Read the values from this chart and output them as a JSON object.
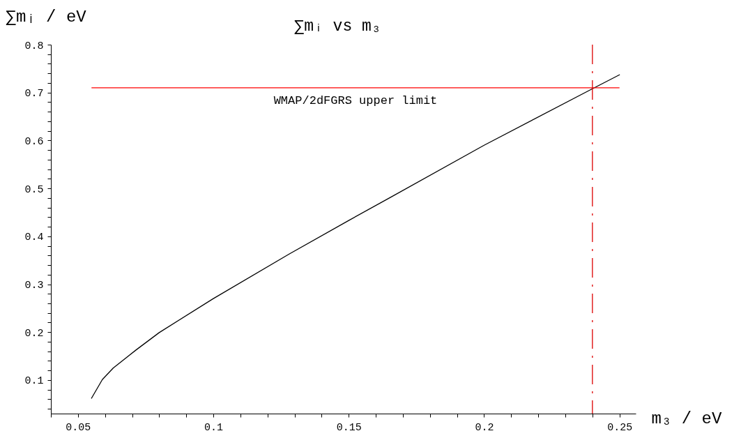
{
  "chart_data": {
    "type": "line",
    "title": "∑mᵢ vs m₃",
    "xlabel": "m₃ / eV",
    "ylabel": "∑mᵢ / eV",
    "series": [
      {
        "color": "#000000",
        "x": [
          0.055,
          0.059,
          0.063,
          0.0715,
          0.08,
          0.1,
          0.128,
          0.15,
          0.165,
          0.2,
          0.24,
          0.25
        ],
        "values": [
          0.062,
          0.101,
          0.125,
          0.163,
          0.199,
          0.27,
          0.363,
          0.433,
          0.48,
          0.59,
          0.708,
          0.737
        ]
      }
    ],
    "xlim": [
      0.04,
      0.256
    ],
    "ylim": [
      0.03,
      0.8
    ],
    "xticks": [
      {
        "value": 0.04,
        "label": null
      },
      0.05,
      {
        "value": 0.06,
        "label": null
      },
      {
        "value": 0.07,
        "label": null
      },
      {
        "value": 0.08,
        "label": null
      },
      {
        "value": 0.09,
        "label": null
      },
      0.1,
      {
        "value": 0.11,
        "label": null
      },
      {
        "value": 0.12,
        "label": null
      },
      {
        "value": 0.13,
        "label": null
      },
      {
        "value": 0.14,
        "label": null
      },
      0.15,
      {
        "value": 0.16,
        "label": null
      },
      {
        "value": 0.17,
        "label": null
      },
      {
        "value": 0.18,
        "label": null
      },
      {
        "value": 0.19,
        "label": null
      },
      0.2,
      {
        "value": 0.21,
        "label": null
      },
      {
        "value": 0.22,
        "label": null
      },
      {
        "value": 0.23,
        "label": null
      },
      {
        "value": 0.24,
        "label": null
      },
      0.25
    ],
    "yticks": [
      {
        "value": 0.04,
        "label": null
      },
      {
        "value": 0.06,
        "label": null
      },
      {
        "value": 0.08,
        "label": null
      },
      0.1,
      {
        "value": 0.12,
        "label": null
      },
      {
        "value": 0.14,
        "label": null
      },
      {
        "value": 0.16,
        "label": null
      },
      {
        "value": 0.18,
        "label": null
      },
      0.2,
      {
        "value": 0.22,
        "label": null
      },
      {
        "value": 0.24,
        "label": null
      },
      {
        "value": 0.26,
        "label": null
      },
      {
        "value": 0.28,
        "label": null
      },
      0.3,
      {
        "value": 0.32,
        "label": null
      },
      {
        "value": 0.34,
        "label": null
      },
      {
        "value": 0.36,
        "label": null
      },
      {
        "value": 0.38,
        "label": null
      },
      0.4,
      {
        "value": 0.42,
        "label": null
      },
      {
        "value": 0.44,
        "label": null
      },
      {
        "value": 0.46,
        "label": null
      },
      {
        "value": 0.48,
        "label": null
      },
      0.5,
      {
        "value": 0.52,
        "label": null
      },
      {
        "value": 0.54,
        "label": null
      },
      {
        "value": 0.56,
        "label": null
      },
      {
        "value": 0.58,
        "label": null
      },
      0.6,
      {
        "value": 0.62,
        "label": null
      },
      {
        "value": 0.64,
        "label": null
      },
      {
        "value": 0.66,
        "label": null
      },
      {
        "value": 0.68,
        "label": null
      },
      0.7,
      {
        "value": 0.72,
        "label": null
      },
      {
        "value": 0.74,
        "label": null
      },
      {
        "value": 0.76,
        "label": null
      },
      {
        "value": 0.78,
        "label": null
      },
      0.8
    ],
    "ref_lines": [
      {
        "axis": "y",
        "value": 0.71,
        "label": "WMAP/2dFGRS upper limit",
        "color": "#ff0000"
      },
      {
        "axis": "x",
        "value": 0.24,
        "color": "#dd0000",
        "line_style": "dashed"
      }
    ],
    "grid": false,
    "marker": "none"
  }
}
